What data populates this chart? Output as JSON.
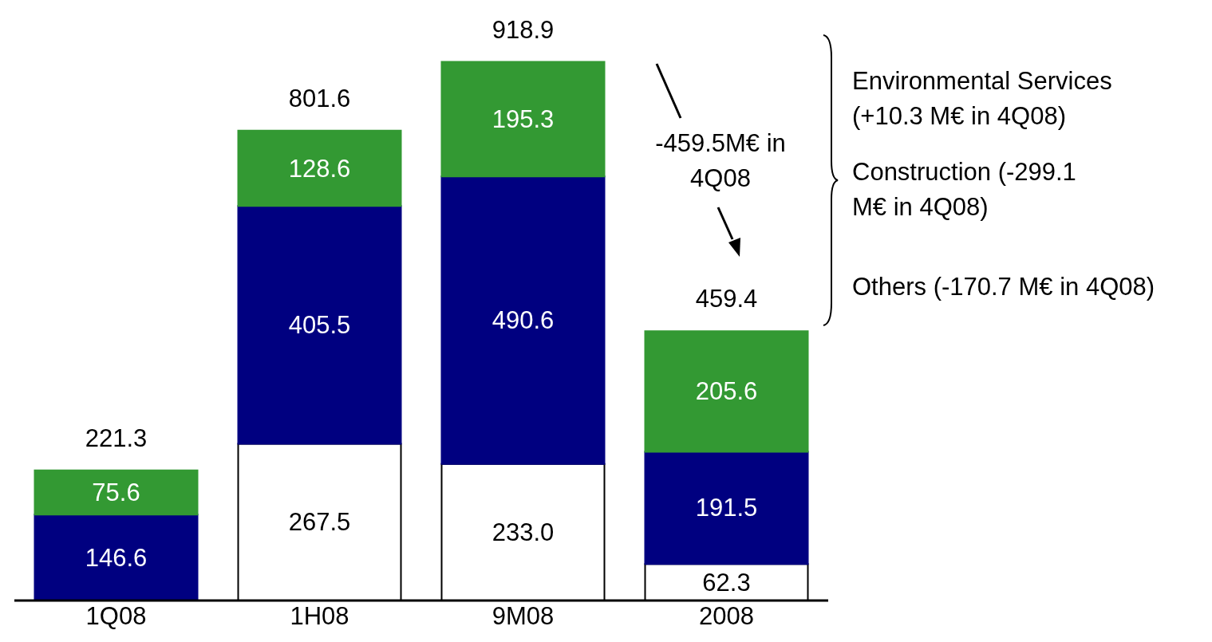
{
  "chart_data": {
    "type": "bar",
    "stacked": true,
    "categories": [
      "1Q08",
      "1H08",
      "9M08",
      "2008"
    ],
    "series": [
      {
        "color": "#ffffff",
        "values": [
          null,
          267.5,
          233.0,
          62.3
        ],
        "value_labels": [
          null,
          "267.5",
          "233.0",
          "62.3"
        ]
      },
      {
        "color": "#000080",
        "values": [
          146.6,
          405.5,
          490.6,
          191.5
        ],
        "value_labels": [
          "146.6",
          "405.5",
          "490.6",
          "191.5"
        ]
      },
      {
        "color": "#339933",
        "values": [
          75.6,
          128.6,
          195.3,
          205.6
        ],
        "value_labels": [
          "75.6",
          "128.6",
          "195.3",
          "205.6"
        ]
      }
    ],
    "tick_labels": "x",
    "grid": false,
    "legend": false,
    "annotations": [
      {
        "text": "221.3",
        "x": "1Q08",
        "y": 221.3
      },
      {
        "text": "801.6",
        "x": "1H08",
        "y": 801.6
      },
      {
        "text": "918.9",
        "x": "9M08",
        "y": 918.9
      },
      {
        "text": "459.4",
        "x": "2008",
        "y": 459.4
      },
      "-459.5M€ in 4Q08",
      "Environmental Services (+10.3 M€ in 4Q08)",
      "Construction (-299.1 M€ in 4Q08)",
      "Others (-170.7 M€ in 4Q08)"
    ]
  }
}
